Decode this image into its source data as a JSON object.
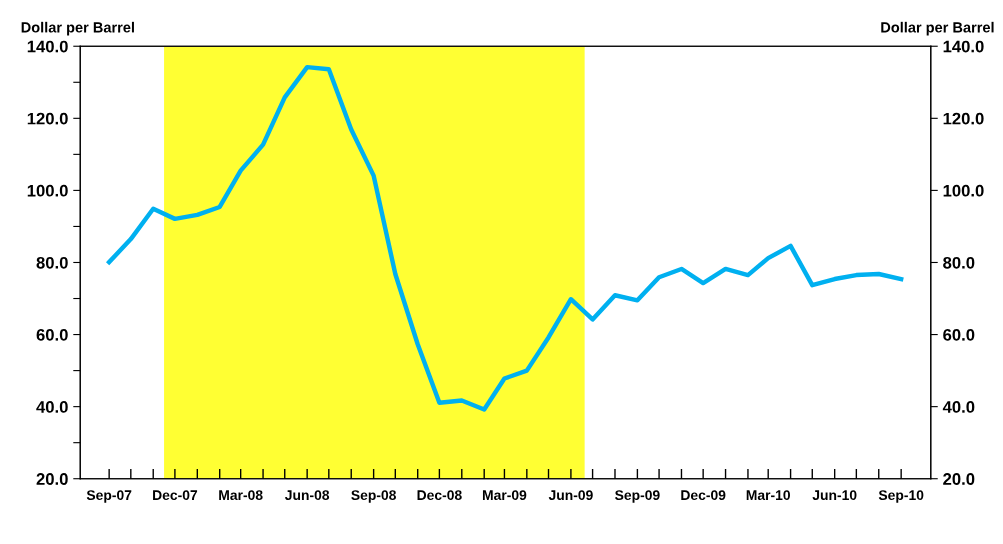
{
  "chart_data": {
    "type": "line",
    "ylabel": "Dollar per Barrel",
    "y2label": "Dollar per Barrel",
    "x": [
      "2007-09",
      "2007-10",
      "2007-11",
      "2007-12",
      "2008-01",
      "2008-02",
      "2008-03",
      "2008-04",
      "2008-05",
      "2008-06",
      "2008-07",
      "2008-08",
      "2008-09",
      "2008-10",
      "2008-11",
      "2008-12",
      "2009-01",
      "2009-02",
      "2009-03",
      "2009-04",
      "2009-05",
      "2009-06",
      "2009-07",
      "2009-08",
      "2009-09",
      "2009-10",
      "2009-11",
      "2009-12",
      "2010-01",
      "2010-02",
      "2010-03",
      "2010-04",
      "2010-05",
      "2010-06",
      "2010-07",
      "2010-08",
      "2010-09"
    ],
    "series": [
      {
        "color": "#00b0f0",
        "values": [
          80.1,
          86.5,
          94.9,
          92.1,
          93.2,
          95.4,
          105.5,
          112.7,
          125.8,
          134.2,
          133.6,
          116.9,
          104.1,
          76.8,
          57.3,
          41.1,
          41.7,
          39.2,
          47.8,
          50.0,
          59.2,
          69.8,
          64.2,
          70.9,
          69.5,
          75.9,
          78.2,
          74.3,
          78.2,
          76.5,
          81.2,
          84.6,
          73.7,
          75.4,
          76.5,
          76.8,
          75.4
        ]
      }
    ],
    "bands": [
      {
        "axis": "x",
        "from": "2007-11-16",
        "to": "2009-06-20",
        "color": "#ffff33"
      }
    ],
    "xlim": [
      "2007-07-23",
      "2010-10-12"
    ],
    "xticks": [
      {
        "value": "2007-09",
        "label": "Sep-07"
      },
      {
        "value": "2007-10",
        "label": null
      },
      {
        "value": "2007-11",
        "label": null
      },
      {
        "value": "2007-12",
        "label": "Dec-07"
      },
      {
        "value": "2008-01",
        "label": null
      },
      {
        "value": "2008-02",
        "label": null
      },
      {
        "value": "2008-03",
        "label": "Mar-08"
      },
      {
        "value": "2008-04",
        "label": null
      },
      {
        "value": "2008-05",
        "label": null
      },
      {
        "value": "2008-06",
        "label": "Jun-08"
      },
      {
        "value": "2008-07",
        "label": null
      },
      {
        "value": "2008-08",
        "label": null
      },
      {
        "value": "2008-09",
        "label": "Sep-08"
      },
      {
        "value": "2008-10",
        "label": null
      },
      {
        "value": "2008-11",
        "label": null
      },
      {
        "value": "2008-12",
        "label": "Dec-08"
      },
      {
        "value": "2009-01",
        "label": null
      },
      {
        "value": "2009-02",
        "label": null
      },
      {
        "value": "2009-03",
        "label": "Mar-09"
      },
      {
        "value": "2009-04",
        "label": null
      },
      {
        "value": "2009-05",
        "label": null
      },
      {
        "value": "2009-06",
        "label": "Jun-09"
      },
      {
        "value": "2009-07",
        "label": null
      },
      {
        "value": "2009-08",
        "label": null
      },
      {
        "value": "2009-09",
        "label": "Sep-09"
      },
      {
        "value": "2009-10",
        "label": null
      },
      {
        "value": "2009-11",
        "label": null
      },
      {
        "value": "2009-12",
        "label": "Dec-09"
      },
      {
        "value": "2010-01",
        "label": null
      },
      {
        "value": "2010-02",
        "label": null
      },
      {
        "value": "2010-03",
        "label": "Mar-10"
      },
      {
        "value": "2010-04",
        "label": null
      },
      {
        "value": "2010-05",
        "label": null
      },
      {
        "value": "2010-06",
        "label": "Jun-10"
      },
      {
        "value": "2010-07",
        "label": null
      },
      {
        "value": "2010-08",
        "label": null
      },
      {
        "value": "2010-09",
        "label": "Sep-10"
      }
    ],
    "ylim": [
      20,
      140
    ],
    "yticks": [
      {
        "value": 20,
        "label": "20.0"
      },
      {
        "value": 30,
        "label": null
      },
      {
        "value": 40,
        "label": "40.0"
      },
      {
        "value": 50,
        "label": null
      },
      {
        "value": 60,
        "label": "60.0"
      },
      {
        "value": 70,
        "label": null
      },
      {
        "value": 80,
        "label": "80.0"
      },
      {
        "value": 90,
        "label": null
      },
      {
        "value": 100,
        "label": "100.0"
      },
      {
        "value": 110,
        "label": null
      },
      {
        "value": 120,
        "label": "120.0"
      },
      {
        "value": 130,
        "label": null
      },
      {
        "value": 140,
        "label": "140.0"
      }
    ],
    "y2lim": [
      20,
      140
    ],
    "y2ticks": [
      {
        "value": 20,
        "label": "20.0"
      },
      {
        "value": 40,
        "label": "40.0"
      },
      {
        "value": 60,
        "label": "60.0"
      },
      {
        "value": 80,
        "label": "80.0"
      },
      {
        "value": 100,
        "label": "100.0"
      },
      {
        "value": 120,
        "label": "120.0"
      },
      {
        "value": 140,
        "label": "140.0"
      }
    ],
    "grid": false,
    "legend": false,
    "marker": "none",
    "line_style": "solid"
  }
}
